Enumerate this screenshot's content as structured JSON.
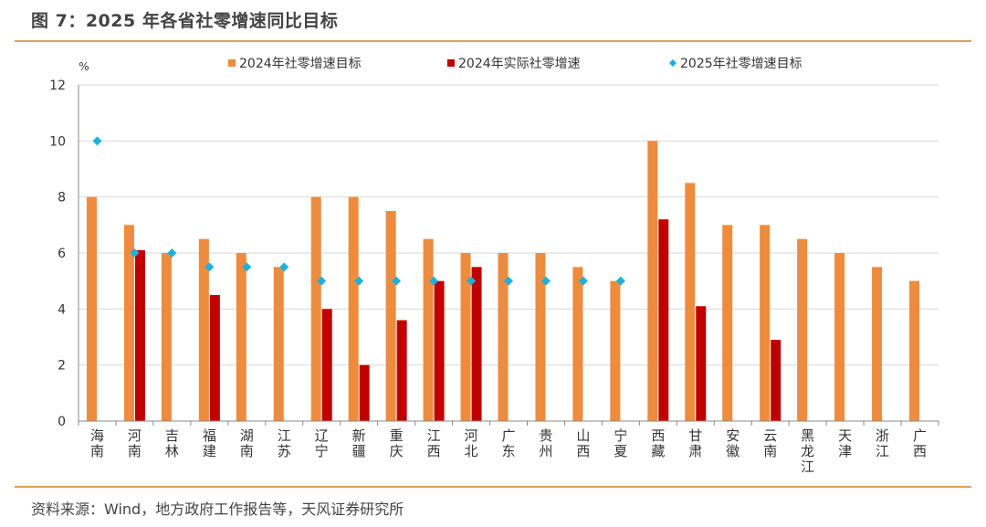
{
  "title": "图 7：2025 年各省社零增速同比目标",
  "source": "资料来源：Wind，地方政府工作报告等，天风证券研究所",
  "colors": {
    "target_2024": "#ED8B3E",
    "actual_2024": "#C00000",
    "target_2025": "#1EB0DC",
    "rule": "#D9A35A"
  },
  "chart_data": {
    "type": "bar",
    "ylabel": "%",
    "ylim": [
      0,
      12
    ],
    "yticks": [
      "0",
      "2",
      "4",
      "6",
      "8",
      "10",
      "12"
    ],
    "grid": true,
    "legend_position": "top",
    "categories": [
      "海南",
      "河南",
      "吉林",
      "福建",
      "湖南",
      "江苏",
      "辽宁",
      "新疆",
      "重庆",
      "江西",
      "河北",
      "广东",
      "贵州",
      "山西",
      "宁夏",
      "西藏",
      "甘肃",
      "安徽",
      "云南",
      "黑龙江",
      "天津",
      "浙江",
      "广西"
    ],
    "series": [
      {
        "name": "2024年社零增速目标",
        "kind": "bar",
        "values": [
          8,
          7,
          6,
          6.5,
          6,
          5.5,
          8,
          8,
          7.5,
          6.5,
          6,
          6,
          6,
          5.5,
          5,
          10,
          8.5,
          7,
          7,
          6.5,
          6,
          5.5,
          5
        ]
      },
      {
        "name": "2024年实际社零增速",
        "kind": "bar",
        "values": [
          null,
          6.1,
          null,
          4.5,
          null,
          null,
          4.0,
          2.0,
          3.6,
          5.0,
          5.5,
          null,
          null,
          null,
          null,
          7.2,
          4.1,
          null,
          2.9,
          null,
          null,
          null,
          null
        ]
      },
      {
        "name": "2025年社零增速目标",
        "kind": "marker",
        "values": [
          10,
          6,
          6,
          5.5,
          5.5,
          5.5,
          5,
          5,
          5,
          5,
          5,
          5,
          5,
          5,
          5,
          null,
          null,
          null,
          null,
          null,
          null,
          null,
          null
        ]
      }
    ]
  }
}
